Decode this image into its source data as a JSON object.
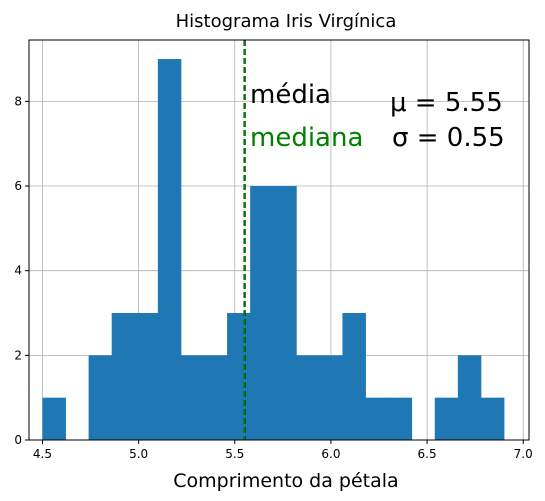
{
  "chart_data": {
    "type": "bar",
    "title": "Histograma Iris Virgínica",
    "xlabel": "Comprimento da pétala",
    "ylabel": "",
    "xlim": [
      4.43,
      7.03
    ],
    "ylim": [
      0,
      9.45
    ],
    "xticks": [
      "4.5",
      "5.0",
      "5.5",
      "6.0",
      "6.5",
      "7.0"
    ],
    "xtick_values": [
      4.5,
      5.0,
      5.5,
      6.0,
      6.5,
      7.0
    ],
    "yticks": [
      "0",
      "2",
      "4",
      "6",
      "8"
    ],
    "ytick_values": [
      0,
      2,
      4,
      6,
      8
    ],
    "grid": true,
    "bar_color": "#1f77b4",
    "bin_edges": [
      4.5,
      4.62,
      4.74,
      4.86,
      4.98,
      5.1,
      5.22,
      5.34,
      5.46,
      5.58,
      5.7,
      5.82,
      5.94,
      6.06,
      6.18,
      6.3,
      6.42,
      6.54,
      6.66,
      6.78,
      6.9
    ],
    "counts": [
      1,
      0,
      2,
      3,
      3,
      9,
      2,
      2,
      3,
      6,
      6,
      2,
      2,
      3,
      1,
      1,
      0,
      1,
      2,
      1
    ],
    "lines": [
      {
        "name": "média",
        "x": 5.552,
        "color": "#000000",
        "style": "dashed"
      },
      {
        "name": "mediana",
        "x": 5.55,
        "color": "#008000",
        "style": "dashed"
      }
    ],
    "annotations": {
      "mean_label": "média",
      "median_label": "mediana",
      "mu_text": "μ = 5.55",
      "sigma_text": "σ = 0.55"
    }
  }
}
